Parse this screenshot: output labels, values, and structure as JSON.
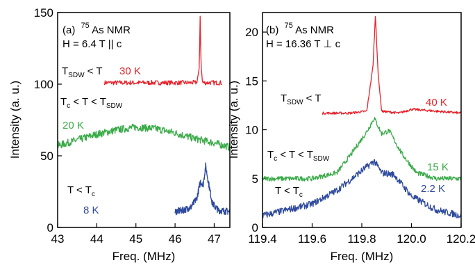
{
  "chart_data": [
    {
      "panel_label": "(a)",
      "title": {
        "nucleus_mass": "75",
        "nucleus_text": "As NMR",
        "field": "H = 6.4 T || c"
      },
      "type": "line",
      "xlabel": "Freq. (MHz)",
      "ylabel": "Intensity (a. u.)",
      "xlim": [
        43,
        47.4
      ],
      "ylim": [
        0,
        150
      ],
      "xticks": [
        "43",
        "44",
        "45",
        "46",
        "47"
      ],
      "yticks": [
        "0",
        "50",
        "100",
        "150"
      ],
      "grid": false,
      "series": [
        {
          "name": "30 K",
          "color": "#e8212a",
          "x": [
            44.2,
            45.0,
            45.6,
            46.2,
            46.55,
            46.62,
            46.64,
            46.66,
            46.7,
            46.8,
            47.2
          ],
          "y": [
            101,
            101,
            101,
            101,
            101,
            110,
            150,
            115,
            101,
            101,
            101
          ]
        },
        {
          "name": "20 K",
          "color": "#3aab49",
          "x": [
            43.0,
            43.5,
            44.0,
            44.5,
            45.0,
            45.5,
            46.0,
            46.5,
            47.0,
            47.4
          ],
          "y": [
            57,
            61,
            65,
            68,
            70,
            69,
            66,
            62,
            59,
            56
          ]
        },
        {
          "name": "8 K",
          "color": "#2e4a9e",
          "x": [
            46.0,
            46.2,
            46.4,
            46.55,
            46.65,
            46.72,
            46.78,
            46.85,
            46.95,
            47.1,
            47.4
          ],
          "y": [
            11,
            12,
            14,
            20,
            32,
            30,
            43,
            32,
            17,
            12,
            11
          ]
        }
      ],
      "annotations": {
        "regime_high": {
          "main": "T",
          "sub": "SDW",
          "rest": " < T"
        },
        "regime_mid": {
          "main1": "T",
          "sub1": "c",
          "mid": " < T < T",
          "sub2": "SDW"
        },
        "regime_low": {
          "main": "T < T",
          "sub": "c"
        },
        "label_30K": "30 K",
        "label_20K": "20 K",
        "label_8K": "8 K"
      }
    },
    {
      "panel_label": "(b)",
      "title": {
        "nucleus_mass": "75",
        "nucleus_text": "As NMR",
        "field": "H = 16.36 T ⊥ c"
      },
      "type": "line",
      "xlabel": "Freq. (MHz)",
      "ylabel": "Intensity (a. u.)",
      "xlim": [
        119.4,
        120.2
      ],
      "ylim": [
        0,
        22
      ],
      "xticks": [
        "119.4",
        "119.6",
        "119.8",
        "120.0",
        "120.2"
      ],
      "yticks": [
        "0",
        "5",
        "10",
        "15",
        "20"
      ],
      "grid": false,
      "series": [
        {
          "name": "40 K",
          "color": "#e8212a",
          "x": [
            119.64,
            119.75,
            119.82,
            119.845,
            119.855,
            119.865,
            119.88,
            119.95,
            120.0,
            120.2
          ],
          "y": [
            11.7,
            11.7,
            11.9,
            16.5,
            21.8,
            16.0,
            11.9,
            11.7,
            12.1,
            11.7
          ]
        },
        {
          "name": "15 K",
          "color": "#3aab49",
          "x": [
            119.4,
            119.6,
            119.7,
            119.76,
            119.82,
            119.85,
            119.88,
            119.91,
            119.96,
            120.02,
            120.1,
            120.2
          ],
          "y": [
            5.0,
            5.0,
            5.6,
            7.6,
            9.8,
            11.2,
            9.6,
            9.9,
            7.6,
            5.6,
            5.0,
            5.0
          ]
        },
        {
          "name": "2.2 K",
          "color": "#2e4a9e",
          "x": [
            119.4,
            119.5,
            119.6,
            119.7,
            119.76,
            119.82,
            119.85,
            119.88,
            119.93,
            120.0,
            120.1,
            120.2
          ],
          "y": [
            1.2,
            1.8,
            2.4,
            3.8,
            5.0,
            6.2,
            6.8,
            5.6,
            5.4,
            3.2,
            1.8,
            1.2
          ]
        }
      ],
      "annotations": {
        "regime_high": {
          "main": "T",
          "sub": "SDW",
          "rest": " < T"
        },
        "regime_mid": {
          "main1": "T",
          "sub1": "c",
          "mid": " < T < T",
          "sub2": "SDW"
        },
        "regime_low": {
          "main": "T < T",
          "sub": "c"
        },
        "label_40K": "40 K",
        "label_15K": "15 K",
        "label_2K": "2.2 K"
      }
    }
  ]
}
